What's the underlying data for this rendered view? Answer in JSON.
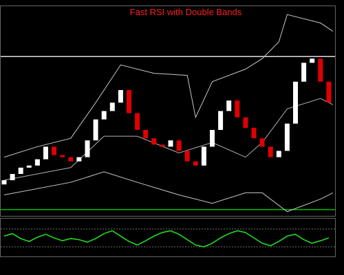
{
  "chart_data": {
    "type": "candlestick",
    "title": "Fast  RSI with Double Bands",
    "up_color": "#ffffff",
    "down_color": "#e00000",
    "title_color": "#ff2020",
    "ylim": [
      0,
      100
    ],
    "open": [
      15,
      17,
      20,
      23,
      24,
      27,
      33,
      29,
      28,
      26,
      28,
      36,
      46,
      50,
      54,
      60,
      49,
      41,
      37,
      34,
      33,
      36,
      31,
      26,
      24,
      33,
      41,
      50,
      55,
      47,
      42,
      37,
      33,
      28,
      31,
      44,
      64,
      73,
      75,
      64
    ],
    "close": [
      17,
      20,
      23,
      24,
      27,
      33,
      29,
      28,
      26,
      28,
      36,
      46,
      50,
      54,
      60,
      49,
      41,
      37,
      34,
      33,
      36,
      31,
      26,
      24,
      33,
      41,
      50,
      55,
      47,
      42,
      37,
      33,
      28,
      31,
      44,
      64,
      73,
      75,
      64,
      54
    ],
    "lines": [
      {
        "color": "#c8c8c8",
        "x": [
          0,
          4,
          8,
          11,
          14,
          18,
          22,
          23,
          25,
          29,
          31,
          33,
          34,
          38,
          39.5
        ],
        "values": [
          28,
          33,
          37,
          54,
          72,
          68,
          67,
          47,
          64,
          70,
          75,
          83,
          96,
          92,
          88
        ]
      },
      {
        "color": "#b0b0b0",
        "x": [
          0,
          8,
          12,
          16,
          21,
          25,
          29,
          31,
          34,
          38,
          39.5
        ],
        "values": [
          17,
          23,
          38,
          38,
          30,
          35,
          28,
          35,
          51,
          56,
          53
        ]
      },
      {
        "color": "#c8c8c8",
        "x": [
          0,
          8,
          12,
          16,
          21,
          25,
          29,
          31,
          34,
          38,
          39.5
        ],
        "values": [
          10,
          16,
          21,
          16,
          10,
          6,
          11,
          11,
          2,
          8,
          11
        ]
      }
    ],
    "levels": [
      {
        "value": 76,
        "color": "#e0e0e0"
      },
      {
        "value": 3,
        "color": "#00c000"
      }
    ],
    "rsi": {
      "ylim": [
        0,
        100
      ],
      "color": "#22dd22",
      "levels": [
        75,
        25
      ],
      "values": [
        55,
        62,
        48,
        40,
        52,
        60,
        50,
        42,
        48,
        45,
        38,
        48,
        62,
        70,
        55,
        40,
        30,
        42,
        55,
        65,
        70,
        60,
        45,
        30,
        25,
        35,
        50,
        62,
        70,
        65,
        50,
        35,
        28,
        40,
        55,
        60,
        45,
        35,
        42,
        50
      ]
    }
  }
}
